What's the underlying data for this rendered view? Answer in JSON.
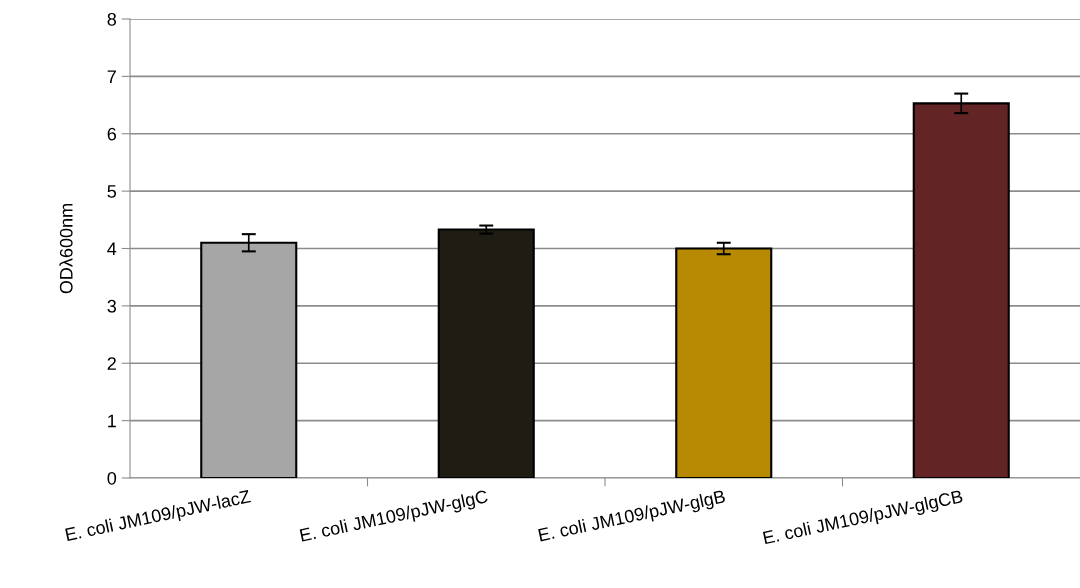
{
  "chart_data": {
    "type": "bar",
    "ylabel": "ODλ600nm",
    "categories": [
      "E. coli JM109/pJW-lacZ",
      "E. coli JM109/pJW-glgC",
      "E. coli JM109/pJW-glgB",
      "E. coli JM109/pJW-glgCB"
    ],
    "values": [
      4.1,
      4.33,
      4.0,
      6.53
    ],
    "errors": [
      0.15,
      0.07,
      0.1,
      0.17
    ],
    "colors": [
      "#a6a6a6",
      "#1f1c13",
      "#b88a03",
      "#632425"
    ],
    "ylim": [
      0,
      8
    ],
    "yticks": [
      0,
      1,
      2,
      3,
      4,
      5,
      6,
      7,
      8
    ],
    "grid": "y"
  }
}
